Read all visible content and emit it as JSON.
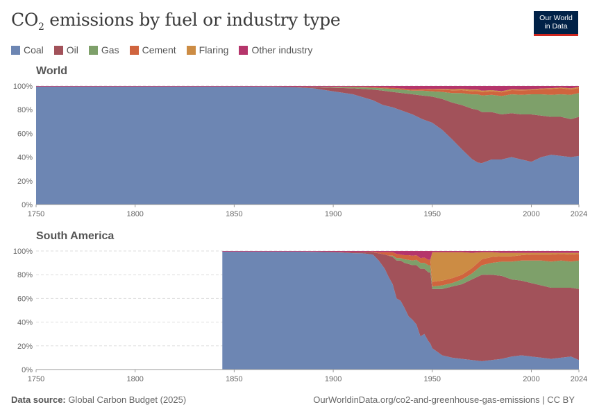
{
  "header": {
    "title_main": "CO",
    "title_sub": "2",
    "title_rest": " emissions by fuel or industry type",
    "logo_line1": "Our World",
    "logo_line2": "in Data"
  },
  "legend": [
    {
      "label": "Coal",
      "color": "#6d86b3"
    },
    {
      "label": "Oil",
      "color": "#a2525a"
    },
    {
      "label": "Gas",
      "color": "#7ea06a"
    },
    {
      "label": "Cement",
      "color": "#d0643e"
    },
    {
      "label": "Flaring",
      "color": "#cc8c44"
    },
    {
      "label": "Other industry",
      "color": "#b5356b"
    }
  ],
  "footer": {
    "source_label": "Data source:",
    "source_value": " Global Carbon Budget (2025)",
    "url": "OurWorldinData.org/co2-and-greenhouse-gas-emissions | CC BY"
  },
  "chart_data": [
    {
      "type": "area",
      "stacked": "percent",
      "title": "World",
      "xlim": [
        1750,
        2024
      ],
      "ylim": [
        0,
        100
      ],
      "x_ticks": [
        "1750",
        "1800",
        "1850",
        "1900",
        "1950",
        "2000",
        "2024"
      ],
      "y_ticks": [
        "0%",
        "20%",
        "40%",
        "60%",
        "80%",
        "100%"
      ],
      "x": [
        1750,
        1850,
        1870,
        1880,
        1890,
        1900,
        1910,
        1920,
        1925,
        1930,
        1940,
        1945,
        1950,
        1955,
        1960,
        1965,
        1970,
        1973,
        1975,
        1980,
        1985,
        1990,
        1995,
        2000,
        2005,
        2010,
        2015,
        2020,
        2024
      ],
      "series": [
        {
          "name": "Coal",
          "values": [
            99.5,
            99.5,
            99.3,
            99,
            98,
            95.5,
            93,
            88,
            84,
            82,
            76,
            72,
            69,
            63,
            55,
            46,
            38,
            35,
            35,
            38,
            38,
            40,
            38,
            36,
            40,
            42,
            41,
            40,
            41
          ]
        },
        {
          "name": "Oil",
          "values": [
            0,
            0,
            0.2,
            0.4,
            1,
            3,
            5,
            9,
            12,
            13,
            17,
            20,
            22,
            26,
            31,
            37,
            42,
            44,
            43,
            40,
            38,
            37,
            38,
            40,
            35,
            32,
            33,
            32,
            33
          ]
        },
        {
          "name": "Gas",
          "values": [
            0,
            0,
            0,
            0,
            0.2,
            0.5,
            1,
            1.5,
            2,
            2.5,
            3,
            4,
            4.5,
            6,
            8,
            10,
            12,
            13,
            14,
            14.5,
            15.5,
            16,
            16.5,
            17,
            18,
            18.5,
            19,
            20.5,
            20
          ]
        },
        {
          "name": "Cement",
          "values": [
            0,
            0,
            0,
            0,
            0.1,
            0.2,
            0.4,
            0.6,
            0.8,
            1,
            1.2,
            1.5,
            1.6,
            2,
            2.3,
            2.5,
            2.6,
            2.7,
            2.8,
            3,
            3.2,
            3.5,
            3.8,
            3.5,
            4.2,
            5,
            5,
            4.6,
            4.3
          ]
        },
        {
          "name": "Flaring",
          "values": [
            0,
            0,
            0,
            0,
            0,
            0,
            0,
            0,
            0,
            0,
            0,
            0,
            0.3,
            0.6,
            1,
            1.1,
            1.4,
            1.3,
            1.2,
            1,
            0.9,
            0.8,
            0.7,
            0.7,
            0.7,
            0.7,
            0.7,
            0.9,
            0.9
          ]
        },
        {
          "name": "Other industry",
          "values": [
            0.5,
            0.5,
            0.5,
            0.6,
            0.7,
            0.8,
            0.6,
            0.9,
            1.2,
            1.5,
            2.8,
            2.5,
            2.6,
            2.4,
            2.7,
            2.4,
            3.0,
            3.0,
            4.0,
            3.5,
            4.4,
            2.7,
            3.0,
            2.8,
            2.1,
            1.8,
            1.3,
            2.0,
            0.8
          ]
        }
      ]
    },
    {
      "type": "area",
      "stacked": "percent",
      "title": "South America",
      "xlim": [
        1750,
        2024
      ],
      "ylim": [
        0,
        100
      ],
      "x_ticks": [
        "1750",
        "1800",
        "1850",
        "1900",
        "1950",
        "2000",
        "2024"
      ],
      "y_ticks": [
        "0%",
        "20%",
        "40%",
        "60%",
        "80%",
        "100%"
      ],
      "x": [
        1844,
        1880,
        1890,
        1900,
        1905,
        1910,
        1915,
        1920,
        1923,
        1926,
        1928,
        1930,
        1932,
        1934,
        1936,
        1938,
        1940,
        1942,
        1944,
        1946,
        1948,
        1949,
        1950,
        1955,
        1960,
        1965,
        1970,
        1975,
        1980,
        1985,
        1990,
        1995,
        2000,
        2005,
        2010,
        2015,
        2020,
        2024
      ],
      "series": [
        {
          "name": "Coal",
          "values": [
            99.5,
            99.5,
            99.3,
            99,
            98.6,
            98.2,
            98,
            97,
            92,
            85,
            78,
            72,
            60,
            58,
            52,
            45,
            42,
            38,
            28,
            30,
            24,
            22,
            18,
            12,
            10,
            9,
            8,
            7,
            8,
            9,
            11,
            12,
            11,
            10,
            9,
            10,
            11,
            8
          ]
        },
        {
          "name": "Oil",
          "values": [
            0,
            0,
            0.2,
            0.4,
            0.7,
            1,
            1.3,
            2,
            6,
            12,
            18,
            23,
            32,
            34,
            38,
            44,
            46,
            50,
            57,
            55,
            58,
            60,
            50,
            56,
            60,
            63,
            68,
            73,
            72,
            70,
            65,
            63,
            62,
            61,
            60,
            59,
            58,
            60
          ]
        },
        {
          "name": "Gas",
          "values": [
            0,
            0,
            0,
            0,
            0,
            0,
            0,
            0,
            0,
            0,
            0,
            1,
            2,
            2,
            3,
            3.5,
            4,
            4.5,
            5,
            5,
            6,
            6,
            2,
            3,
            3,
            4,
            5,
            8,
            10,
            12,
            15,
            17,
            19,
            21,
            22,
            23,
            22,
            24
          ]
        },
        {
          "name": "Cement",
          "values": [
            0,
            0,
            0,
            0,
            0,
            0,
            0,
            0.5,
            1,
            2,
            3,
            3,
            3.5,
            3,
            3.5,
            4,
            4,
            4,
            4,
            4.5,
            4.5,
            4.5,
            4,
            4,
            4,
            4,
            4.5,
            5,
            5,
            4.5,
            4.5,
            4.5,
            5,
            5,
            6,
            5.5,
            6,
            5.5
          ]
        },
        {
          "name": "Flaring",
          "values": [
            0,
            0,
            0,
            0,
            0,
            0,
            0,
            0,
            0,
            0,
            0,
            0,
            0,
            0,
            0,
            0,
            0,
            0,
            0,
            0,
            0,
            0,
            25,
            24,
            22,
            19,
            13,
            6,
            4,
            3,
            3,
            2,
            1.5,
            1.5,
            1.5,
            1,
            1.5,
            1
          ]
        },
        {
          "name": "Other industry",
          "values": [
            0.5,
            0.5,
            0.5,
            0.6,
            0.7,
            0.8,
            0.7,
            0.5,
            1,
            1,
            1,
            1,
            2.5,
            3,
            3.5,
            3.5,
            4,
            3.5,
            6,
            5.5,
            7.5,
            7.5,
            1,
            1,
            1,
            1,
            1.5,
            1,
            1,
            1.5,
            1.5,
            1.5,
            1.5,
            1.5,
            1.5,
            1.5,
            1.5,
            1.5
          ]
        }
      ]
    }
  ]
}
